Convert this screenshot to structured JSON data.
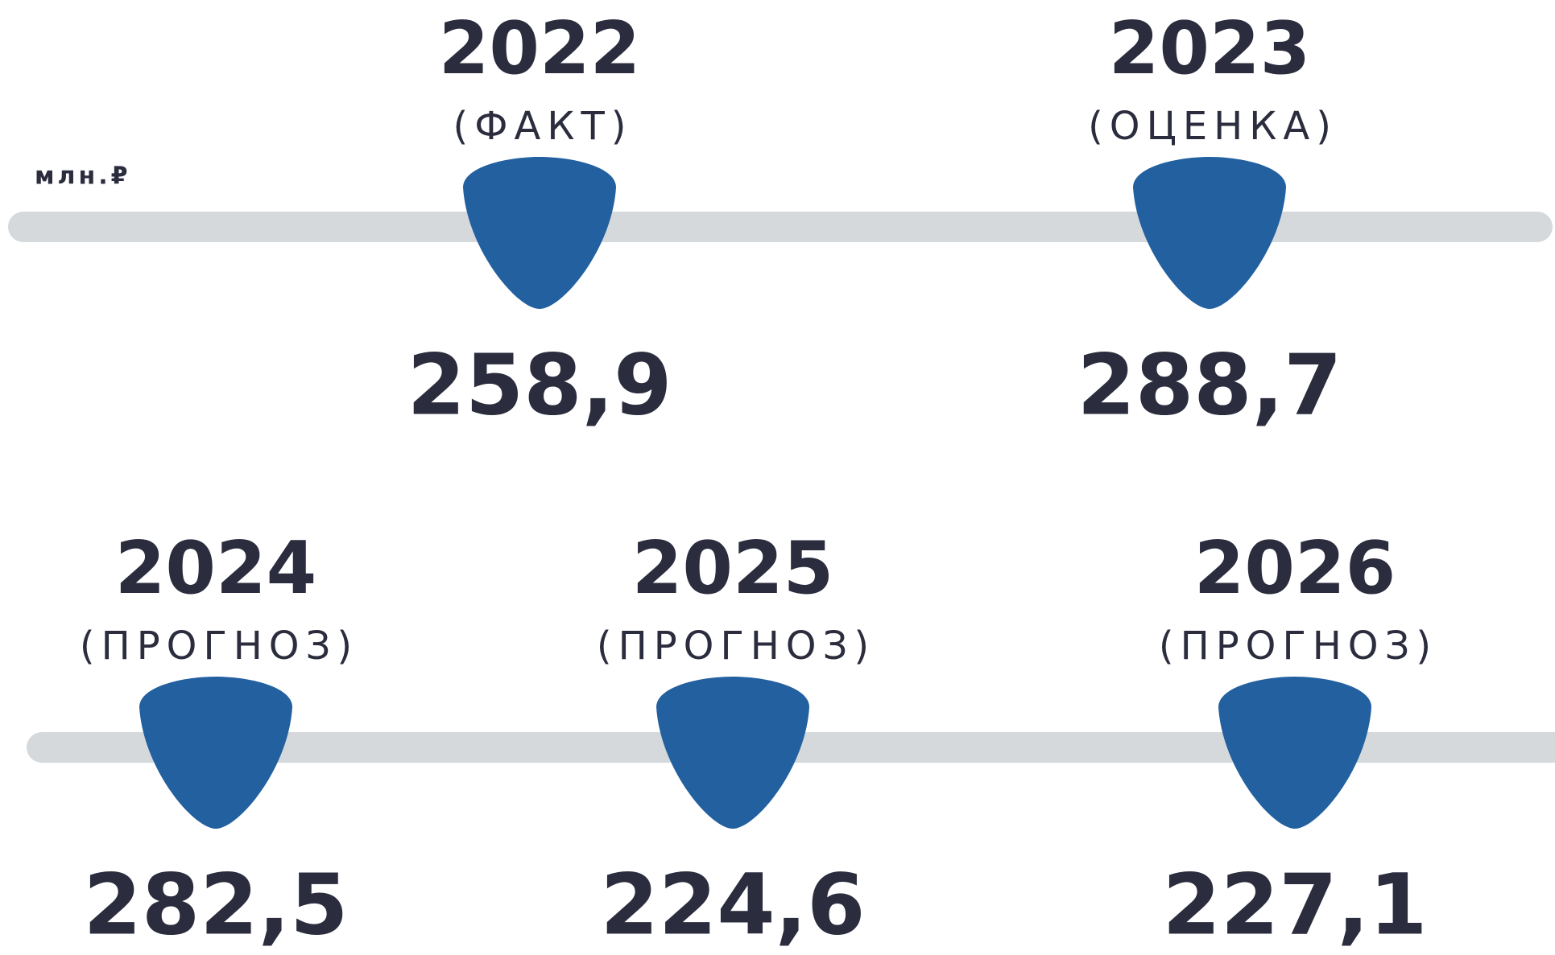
{
  "unit": "млн.₽",
  "items": [
    {
      "year": "2022",
      "label": "(ФАКТ)",
      "value": "258,9"
    },
    {
      "year": "2023",
      "label": "(ОЦЕНКА)",
      "value": "288,7"
    },
    {
      "year": "2024",
      "label": "(ПРОГНОЗ)",
      "value": "282,5"
    },
    {
      "year": "2025",
      "label": "(ПРОГНОЗ)",
      "value": "224,6"
    },
    {
      "year": "2026",
      "label": "(ПРОГНОЗ)",
      "value": "227,1"
    }
  ]
}
